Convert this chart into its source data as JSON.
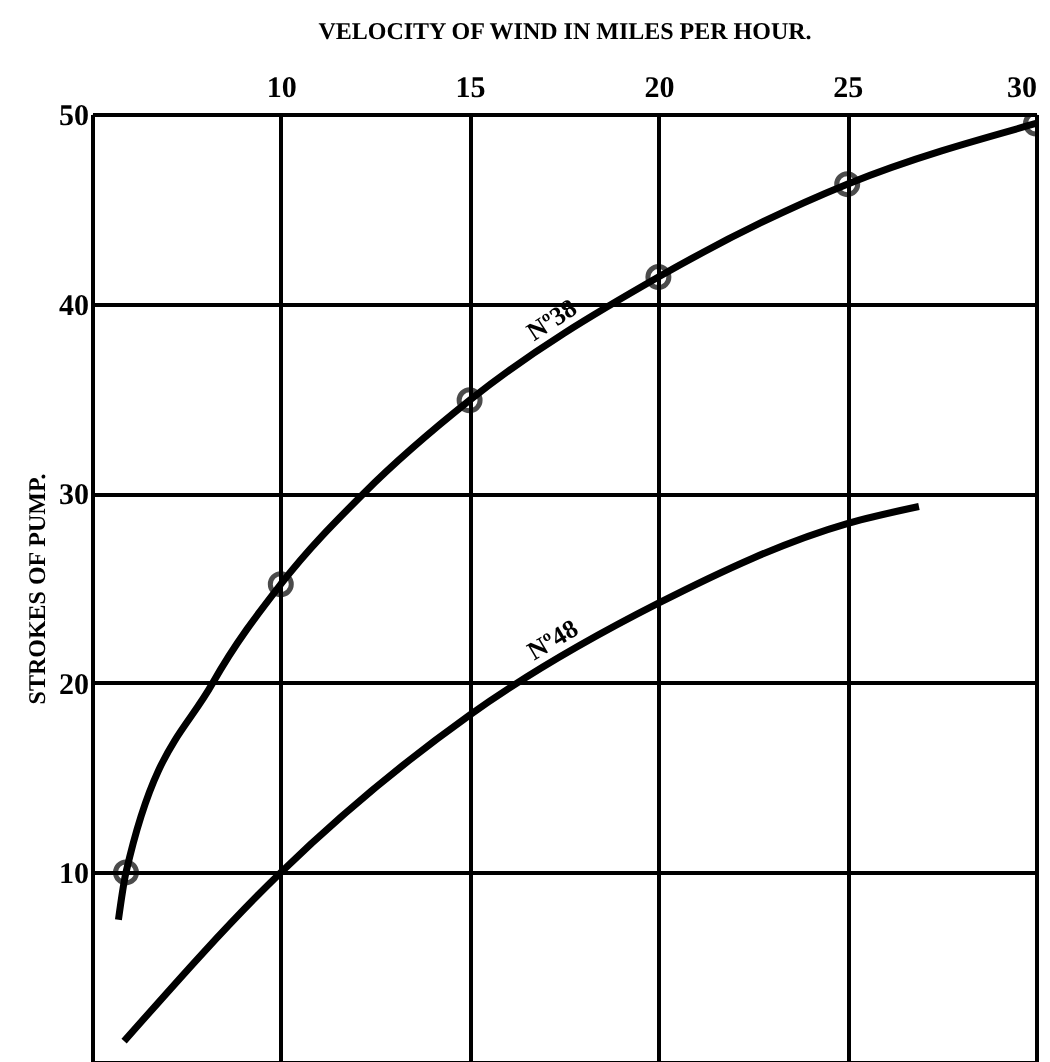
{
  "chart_data": {
    "type": "line",
    "xlabel": "VELOCITY OF WIND IN MILES PER HOUR.",
    "ylabel": "STROKES OF PUMP.",
    "xlim": [
      5,
      30
    ],
    "xticks": [
      {
        "value": 5,
        "label": null
      },
      10,
      15,
      20,
      25,
      30
    ],
    "ylim": [
      0,
      50
    ],
    "yticks": [
      {
        "value": 0,
        "label": null
      },
      10,
      20,
      30,
      40,
      50
    ],
    "grid": true,
    "line_style": "solid",
    "series": [
      {
        "name": "Nº38",
        "color": "#000000",
        "marker": "none",
        "x": [
          5.7,
          5.9,
          8.2,
          10,
          12.2,
          15,
          20,
          25,
          30
        ],
        "values": [
          7.5,
          10,
          20,
          25.2,
          30,
          34.9,
          41.4,
          46.3,
          49.5
        ]
      },
      {
        "type": "scatter",
        "color": "#000000",
        "marker": "circle",
        "x": [
          5.9,
          10,
          15,
          20,
          25,
          30
        ],
        "values": [
          10,
          25.2,
          34.9,
          41.4,
          46.3,
          49.5
        ]
      },
      {
        "name": "Nº48",
        "color": "#000000",
        "marker": "none",
        "x": [
          5.85,
          10,
          15,
          20,
          25,
          26.9
        ],
        "values": [
          1.1,
          10,
          18.3,
          24.2,
          28.4,
          29.3
        ]
      }
    ]
  }
}
